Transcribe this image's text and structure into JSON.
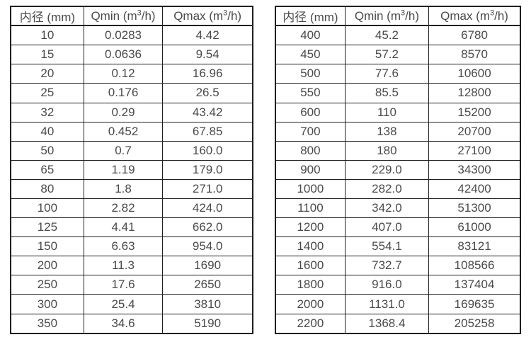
{
  "page": {
    "background_color": "#ffffff",
    "border_color": "#1f1f1f",
    "text_color": "#4a4a4a"
  },
  "chart_data": [
    {
      "type": "table",
      "name": "flow-range-table-small-diameters",
      "columns": [
        "内径 (mm)",
        "Qmin (m³/h)",
        "Qmax (m³/h)"
      ],
      "col_widths_pct": [
        30.2,
        32.6,
        37.2
      ],
      "rows": [
        [
          "10",
          "0.0283",
          "4.42"
        ],
        [
          "15",
          "0.0636",
          "9.54"
        ],
        [
          "20",
          "0.12",
          "16.96"
        ],
        [
          "25",
          "0.176",
          "26.5"
        ],
        [
          "32",
          "0.29",
          "43.42"
        ],
        [
          "40",
          "0.452",
          "67.85"
        ],
        [
          "50",
          "0.7",
          "160.0"
        ],
        [
          "65",
          "1.19",
          "179.0"
        ],
        [
          "80",
          "1.8",
          "271.0"
        ],
        [
          "100",
          "2.82",
          "424.0"
        ],
        [
          "125",
          "4.41",
          "662.0"
        ],
        [
          "150",
          "6.63",
          "954.0"
        ],
        [
          "200",
          "11.3",
          "1690"
        ],
        [
          "250",
          "17.6",
          "2650"
        ],
        [
          "300",
          "25.4",
          "3810"
        ],
        [
          "350",
          "34.6",
          "5190"
        ]
      ]
    },
    {
      "type": "table",
      "name": "flow-range-table-large-diameters",
      "columns": [
        "内径 (mm)",
        "Qmin (m³/h)",
        "Qmax (m³/h)"
      ],
      "col_widths_pct": [
        28.4,
        34.2,
        37.4
      ],
      "rows": [
        [
          "400",
          "45.2",
          "6780"
        ],
        [
          "450",
          "57.2",
          "8570"
        ],
        [
          "500",
          "77.6",
          "10600"
        ],
        [
          "550",
          "85.5",
          "12800"
        ],
        [
          "600",
          "110",
          "15200"
        ],
        [
          "700",
          "138",
          "20700"
        ],
        [
          "800",
          "180",
          "27100"
        ],
        [
          "900",
          "229.0",
          "34300"
        ],
        [
          "1000",
          "282.0",
          "42400"
        ],
        [
          "1100",
          "342.0",
          "51300"
        ],
        [
          "1200",
          "407.0",
          "61000"
        ],
        [
          "1400",
          "554.1",
          "83121"
        ],
        [
          "1600",
          "732.7",
          "108566"
        ],
        [
          "1800",
          "916.0",
          "137404"
        ],
        [
          "2000",
          "1131.0",
          "169635"
        ],
        [
          "2200",
          "1368.4",
          "205258"
        ]
      ]
    }
  ]
}
